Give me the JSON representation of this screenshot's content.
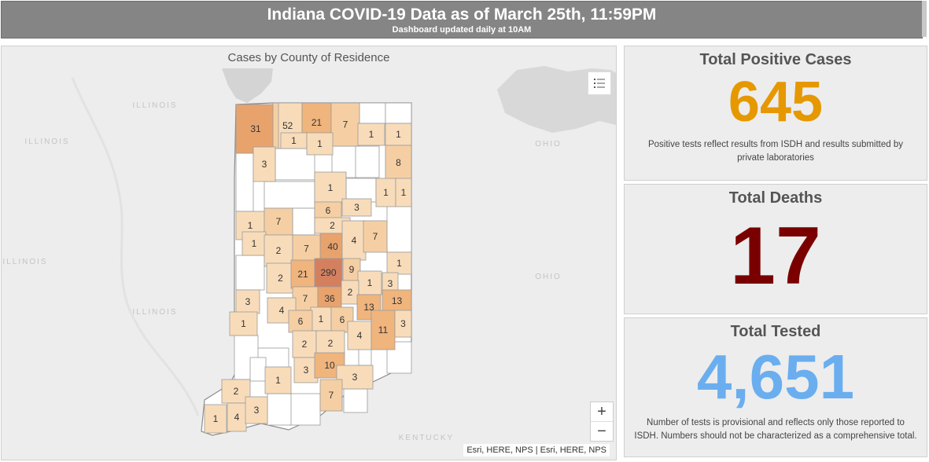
{
  "header": {
    "title": "Indiana COVID-19 Data as of March 25th, 11:59PM",
    "subtitle": "Dashboard updated daily at 10AM"
  },
  "map": {
    "title": "Cases by County of Residence",
    "attribution": "Esri, HERE, NPS | Esri, HERE, NPS",
    "zoom_in": "+",
    "zoom_out": "−",
    "basemap_labels": [
      "ILLINOIS",
      "ILLINOIS",
      "ILLINOIS",
      "ILLINOIS",
      "OHIO",
      "OHIO",
      "KENTUCKY"
    ],
    "county_counts": [
      "31",
      "5",
      "2",
      "21",
      "7",
      "1",
      "1",
      "1",
      "1",
      "3",
      "8",
      "1",
      "1",
      "1",
      "6",
      "3",
      "1",
      "7",
      "2",
      "1",
      "40",
      "4",
      "7",
      "2",
      "7",
      "1",
      "2",
      "21",
      "290",
      "9",
      "1",
      "3",
      "3",
      "7",
      "36",
      "2",
      "13",
      "13",
      "4",
      "1",
      "6",
      "6",
      "4",
      "11",
      "3",
      "2",
      "2",
      "1",
      "3",
      "10",
      "3",
      "1",
      "7",
      "2",
      "1",
      "4",
      "3"
    ]
  },
  "stats": {
    "positive": {
      "label": "Total Positive Cases",
      "value": "645",
      "color": "#e69800",
      "note": "Positive tests reflect results from ISDH and results submitted by private laboratories"
    },
    "deaths": {
      "label": "Total Deaths",
      "value": "17",
      "color": "#7a0000"
    },
    "tested": {
      "label": "Total Tested",
      "value": "4,651",
      "color": "#6aaeef",
      "note": "Number of tests is provisional and reflects only those reported to ISDH. Numbers should not be characterized as a comprehensive total."
    }
  }
}
